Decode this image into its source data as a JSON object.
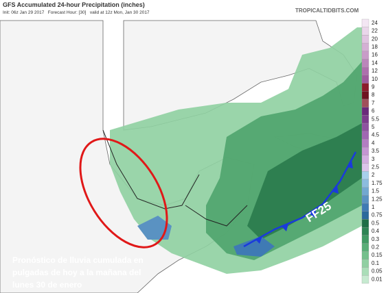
{
  "header": {
    "title": "GFS Accumulated 24-hour Precipitation (inches)",
    "subtitle": "Init: 06z Jan 29 2017   Forecast Hour: [30]   valid at 12z Mon, Jan 30 2017",
    "site": "TROPICALTIDBITS.COM"
  },
  "front_label": "FF25",
  "caption": [
    "Pronóstico de lluvia cumulada en",
    "pulgadas de hoy a la mañana del",
    "lunes 30 de enero"
  ],
  "legend": [
    {
      "label": "24",
      "color": "#f3e6f3"
    },
    {
      "label": "22",
      "color": "#ead6ea"
    },
    {
      "label": "20",
      "color": "#e0c4e0"
    },
    {
      "label": "18",
      "color": "#d4b0d4"
    },
    {
      "label": "16",
      "color": "#c89cc8"
    },
    {
      "label": "14",
      "color": "#bb86bb"
    },
    {
      "label": "12",
      "color": "#ad70ad"
    },
    {
      "label": "10",
      "color": "#9e5c9e"
    },
    {
      "label": "9",
      "color": "#8c1c2c"
    },
    {
      "label": "8",
      "color": "#6e1420"
    },
    {
      "label": "7",
      "color": "#a0505a"
    },
    {
      "label": "6",
      "color": "#6a2a7a"
    },
    {
      "label": "5.5",
      "color": "#7c3c8c"
    },
    {
      "label": "5",
      "color": "#8e52a0"
    },
    {
      "label": "4.5",
      "color": "#a068b2"
    },
    {
      "label": "4",
      "color": "#b27ec2"
    },
    {
      "label": "3.5",
      "color": "#c496d2"
    },
    {
      "label": "3",
      "color": "#d2aee0"
    },
    {
      "label": "2.5",
      "color": "#dcc4ea"
    },
    {
      "label": "2",
      "color": "#a8d0ec"
    },
    {
      "label": "1.75",
      "color": "#8cbcde"
    },
    {
      "label": "1.5",
      "color": "#72a8d0"
    },
    {
      "label": "1.25",
      "color": "#5a92c2"
    },
    {
      "label": "1",
      "color": "#3f7ab4"
    },
    {
      "label": "0.75",
      "color": "#2c6a9c"
    },
    {
      "label": "0.5",
      "color": "#1f6e46"
    },
    {
      "label": "0.4",
      "color": "#2e8454"
    },
    {
      "label": "0.3",
      "color": "#419a64"
    },
    {
      "label": "0.2",
      "color": "#5aae78"
    },
    {
      "label": "0.15",
      "color": "#74c08c"
    },
    {
      "label": "0.1",
      "color": "#90d0a2"
    },
    {
      "label": "0.05",
      "color": "#aadeb8"
    },
    {
      "label": "0.01",
      "color": "#c6ead0"
    }
  ]
}
